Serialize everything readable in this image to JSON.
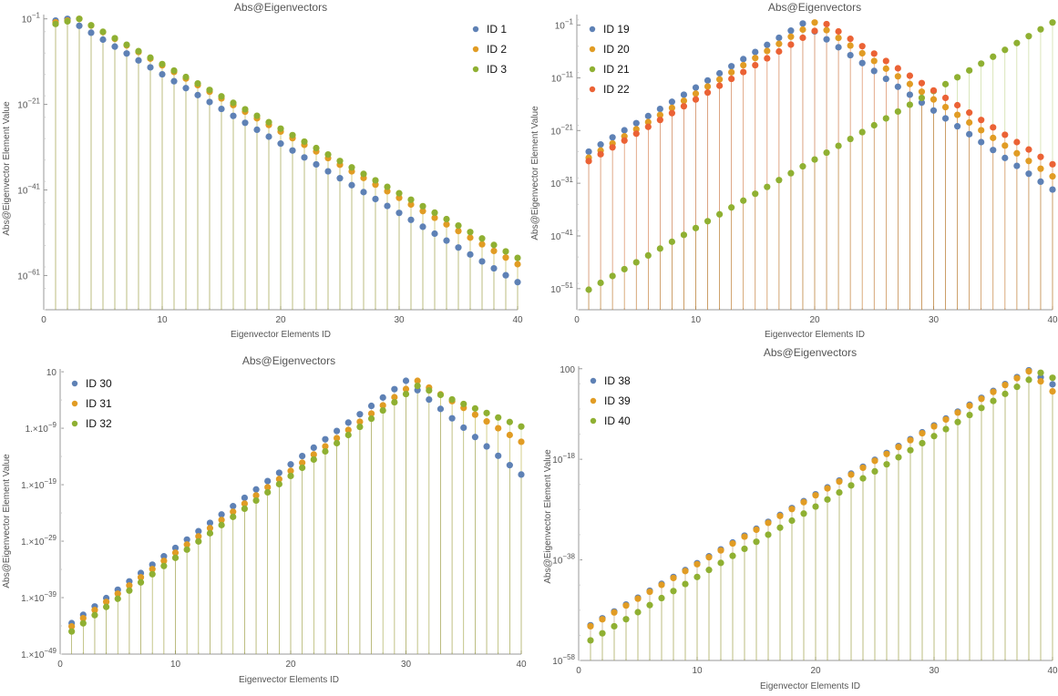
{
  "chart_data": [
    {
      "type": "scatter",
      "title": "Abs@Eigenvectors",
      "xlabel": "Eigenvector Elements ID",
      "ylabel": "Abs@Eigenvector Element Value",
      "y_scale": "log",
      "xlim": [
        0,
        40
      ],
      "ylim_exp": [
        -69,
        0
      ],
      "x_ticks": [
        0,
        10,
        20,
        30,
        40
      ],
      "x_tick_labels": [
        "0",
        "10",
        "20",
        "30",
        "40"
      ],
      "y_ticks_exp": [
        -1,
        -21,
        -41,
        -61
      ],
      "y_tick_labels": [
        {
          "mant": "",
          "base": "10",
          "exp": "−1"
        },
        {
          "mant": "",
          "base": "10",
          "exp": "−21"
        },
        {
          "mant": "",
          "base": "10",
          "exp": "−41"
        },
        {
          "mant": "",
          "base": "10",
          "exp": "−61"
        }
      ],
      "stems": true,
      "legend_position": "top-right",
      "series": [
        {
          "name": "ID 1",
          "color": "#5E81B5",
          "peak_x": 2,
          "peak_exp": -1.0,
          "left_slope": 0.4,
          "right_slope": 1.62
        },
        {
          "name": "ID 2",
          "color": "#E19C24",
          "peak_x": 3,
          "peak_exp": -1.0,
          "left_slope": 0.4,
          "right_slope": 1.55
        },
        {
          "name": "ID 3",
          "color": "#8FB032",
          "peak_x": 3,
          "peak_exp": -1.0,
          "left_slope": 0.6,
          "right_slope": 1.51
        }
      ]
    },
    {
      "type": "scatter",
      "title": "Abs@Eigenvectors",
      "xlabel": "Eigenvector Elements ID",
      "ylabel": "Abs@Eigenvector Element Value",
      "y_scale": "log",
      "xlim": [
        0,
        40
      ],
      "ylim_exp": [
        -55,
        1
      ],
      "x_ticks": [
        0,
        10,
        20,
        30,
        40
      ],
      "x_tick_labels": [
        "0",
        "10",
        "20",
        "30",
        "40"
      ],
      "y_ticks_exp": [
        -1,
        -11,
        -21,
        -31,
        -41,
        -51
      ],
      "y_tick_labels": [
        {
          "mant": "",
          "base": "10",
          "exp": "−1"
        },
        {
          "mant": "",
          "base": "10",
          "exp": "−11"
        },
        {
          "mant": "",
          "base": "10",
          "exp": "−21"
        },
        {
          "mant": "",
          "base": "10",
          "exp": "−31"
        },
        {
          "mant": "",
          "base": "10",
          "exp": "−41"
        },
        {
          "mant": "",
          "base": "10",
          "exp": "−51"
        }
      ],
      "stems": true,
      "legend_position": "top-left",
      "series": [
        {
          "name": "ID 19",
          "color": "#5E81B5",
          "peak_x": 19,
          "peak_exp": -0.7,
          "left_slope": 1.35,
          "right_slope": 1.5
        },
        {
          "name": "ID 20",
          "color": "#E19C24",
          "peak_x": 20,
          "peak_exp": -0.5,
          "left_slope": 1.35,
          "right_slope": 1.46
        },
        {
          "name": "ID 21",
          "color": "#8FB032",
          "peak_x": 40,
          "peak_exp": -0.5,
          "left_slope": 1.3,
          "right_slope": 0
        },
        {
          "name": "ID 22",
          "color": "#EB6235",
          "peak_x": 21,
          "peak_exp": -0.8,
          "left_slope": 1.3,
          "right_slope": 1.4
        }
      ]
    },
    {
      "type": "scatter",
      "title": "Abs@Eigenvectors",
      "xlabel": "Eigenvector Elements ID",
      "ylabel": "Abs@Eigenvector Element Value",
      "y_scale": "log",
      "xlim": [
        0,
        40
      ],
      "ylim_exp": [
        -49,
        1.5
      ],
      "x_ticks": [
        0,
        10,
        20,
        30,
        40
      ],
      "x_tick_labels": [
        "0",
        "10",
        "20",
        "30",
        "40"
      ],
      "y_ticks_exp": [
        1,
        -9,
        -19,
        -29,
        -39,
        -49
      ],
      "y_tick_labels": [
        {
          "mant": "10",
          "base": "",
          "exp": ""
        },
        {
          "mant": "1.×",
          "base": "10",
          "exp": "−9"
        },
        {
          "mant": "1.×",
          "base": "10",
          "exp": "−19"
        },
        {
          "mant": "1.×",
          "base": "10",
          "exp": "−29"
        },
        {
          "mant": "1.×",
          "base": "10",
          "exp": "−39"
        },
        {
          "mant": "1.×",
          "base": "10",
          "exp": "−49"
        }
      ],
      "stems": true,
      "legend_position": "top-left",
      "series": [
        {
          "name": "ID 30",
          "color": "#5E81B5",
          "peak_x": 30,
          "peak_exp": -0.6,
          "left_slope": 1.48,
          "right_slope": 1.66
        },
        {
          "name": "ID 31",
          "color": "#E19C24",
          "peak_x": 31,
          "peak_exp": -0.6,
          "left_slope": 1.45,
          "right_slope": 1.2
        },
        {
          "name": "ID 32",
          "color": "#8FB032",
          "peak_x": 31,
          "peak_exp": -1.5,
          "left_slope": 1.45,
          "right_slope": 0.8
        }
      ]
    },
    {
      "type": "scatter",
      "title": "Abs@Eigenvectors",
      "xlabel": "Eigenvector Elements ID",
      "ylabel": "Abs@Eigenvector Element Value",
      "y_scale": "log",
      "xlim": [
        0,
        40
      ],
      "ylim_exp": [
        -58,
        0.5
      ],
      "x_ticks": [
        0,
        10,
        20,
        30,
        40
      ],
      "x_tick_labels": [
        "0",
        "10",
        "20",
        "30",
        "40"
      ],
      "y_ticks_exp": [
        0,
        -18,
        -38,
        -58
      ],
      "y_tick_labels": [
        {
          "mant": "100",
          "base": "",
          "exp": ""
        },
        {
          "mant": "",
          "base": "10",
          "exp": "−18"
        },
        {
          "mant": "",
          "base": "10",
          "exp": "−38"
        },
        {
          "mant": "",
          "base": "10",
          "exp": "−58"
        }
      ],
      "stems": true,
      "legend_position": "top-left",
      "series": [
        {
          "name": "ID 38",
          "color": "#5E81B5",
          "peak_x": 38,
          "peak_exp": -0.3,
          "left_slope": 1.37,
          "right_slope": 1.4
        },
        {
          "name": "ID 39",
          "color": "#E19C24",
          "peak_x": 38,
          "peak_exp": -0.5,
          "left_slope": 1.37,
          "right_slope": 2.0
        },
        {
          "name": "ID 40",
          "color": "#8FB032",
          "peak_x": 39,
          "peak_exp": -0.8,
          "left_slope": 1.4,
          "right_slope": 1.0
        }
      ]
    }
  ]
}
